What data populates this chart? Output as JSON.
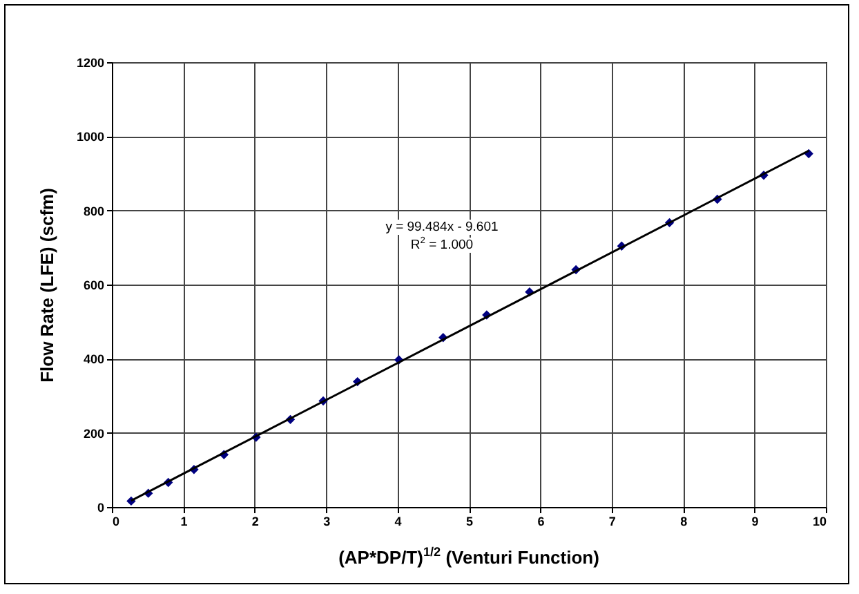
{
  "chart_data": {
    "type": "scatter",
    "xlabel": "(AP*DP/T)$^{1/2}$ (Venturi Function)",
    "ylabel": "Flow Rate (LFE) (scfm)",
    "annotations": [
      "y = 99.484x - 9.601",
      "R$^{2}$ = 1.000"
    ],
    "x": [
      0.27,
      0.51,
      0.79,
      1.15,
      1.57,
      2.02,
      2.5,
      2.96,
      3.44,
      4.02,
      4.64,
      5.25,
      5.85,
      6.5,
      7.14,
      7.81,
      8.48,
      9.13,
      9.76
    ],
    "series": [
      {
        "color": "#000080",
        "marker": "diamond",
        "values": [
          16,
          37,
          66,
          101,
          141,
          188,
          236,
          286,
          338,
          397,
          457,
          518,
          580,
          640,
          704,
          767,
          830,
          895,
          953
        ]
      },
      {
        "type": "line",
        "color": "#000000",
        "marker": "none",
        "x": [
          0.27,
          9.76
        ],
        "values": [
          17,
          961
        ]
      }
    ],
    "xlim": [
      0,
      10
    ],
    "xticks": [
      0,
      1,
      2,
      3,
      4,
      5,
      6,
      7,
      8,
      9,
      10
    ],
    "ylim": [
      0,
      1200
    ],
    "yticks": [
      0,
      200,
      400,
      600,
      800,
      1000,
      1200
    ],
    "grid": true
  }
}
